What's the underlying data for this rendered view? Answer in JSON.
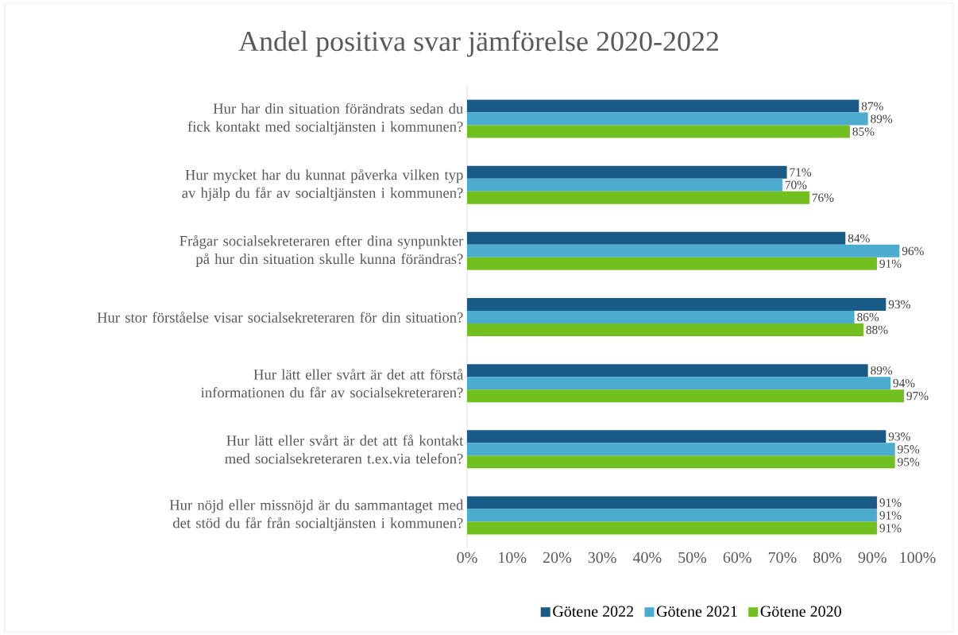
{
  "chart_data": {
    "type": "bar",
    "orientation": "horizontal",
    "title": "Andel positiva svar jämförelse 2020-2022",
    "categories": [
      "Hur har din situation förändrats sedan du fick kontakt med socialtjänsten i kommunen?",
      "Hur mycket har du kunnat påverka vilken typ av hjälp du får av socialtjänsten i kommunen?",
      "Frågar socialsekreteraren efter dina synpunkter på hur din situation skulle kunna förändras?",
      "Hur stor förståelse visar socialsekreteraren för din situation?",
      "Hur lätt eller svårt är det att förstå informationen du får av socialsekreteraren?",
      "Hur lätt eller svårt är det att få kontakt med socialsekreteraren t.ex.via telefon?",
      "Hur nöjd eller missnöjd är du sammantaget med det stöd du får från socialtjänsten i kommunen?"
    ],
    "series": [
      {
        "name": "Götene 2022",
        "color": "#1a5a86",
        "values": [
          87,
          71,
          84,
          93,
          89,
          93,
          91
        ],
        "value_labels": [
          "87%",
          "71%",
          "84%",
          "93%",
          "89%",
          "93%",
          "91%"
        ]
      },
      {
        "name": "Götene 2021",
        "color": "#4bacd0",
        "values": [
          89,
          70,
          96,
          86,
          94,
          95,
          91
        ],
        "value_labels": [
          "89%",
          "70%",
          "96%",
          "86%",
          "94%",
          "95%",
          "91%"
        ]
      },
      {
        "name": "Götene 2020",
        "color": "#72bf20",
        "values": [
          85,
          76,
          91,
          88,
          97,
          95,
          91
        ],
        "value_labels": [
          "85%",
          "76%",
          "91%",
          "88%",
          "97%",
          "95%",
          "91%"
        ]
      }
    ],
    "xlim": [
      0,
      100
    ],
    "xticks": [
      {
        "value": 0,
        "label": "0%"
      },
      {
        "value": 10,
        "label": "10%"
      },
      {
        "value": 20,
        "label": "20%"
      },
      {
        "value": 30,
        "label": "30%"
      },
      {
        "value": 40,
        "label": "40%"
      },
      {
        "value": 50,
        "label": "50%"
      },
      {
        "value": 60,
        "label": "60%"
      },
      {
        "value": 70,
        "label": "70%"
      },
      {
        "value": 80,
        "label": "80%"
      },
      {
        "value": 90,
        "label": "90%"
      },
      {
        "value": 100,
        "label": "100%"
      }
    ],
    "legend": "bottom"
  }
}
